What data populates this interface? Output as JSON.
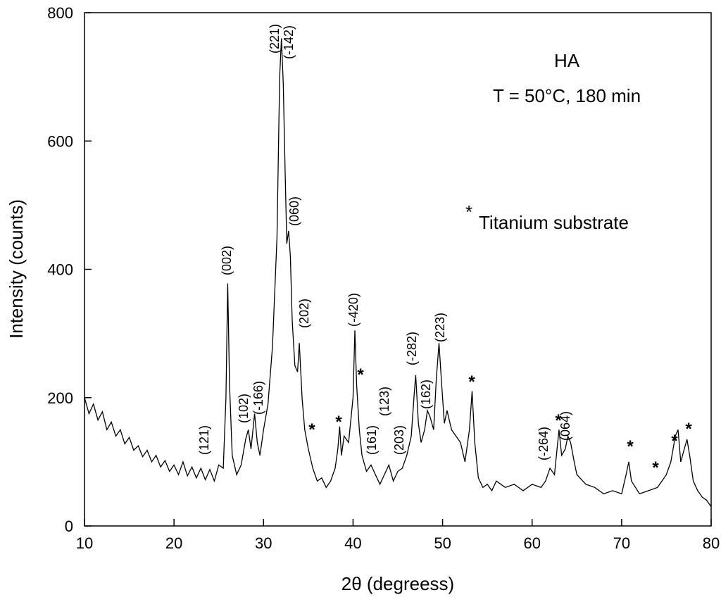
{
  "chart_data": {
    "type": "line",
    "xlabel": "2θ (degreess)",
    "ylabel": "Intensity (counts)",
    "xlim": [
      10,
      80
    ],
    "xticks": [
      10,
      20,
      30,
      40,
      50,
      60,
      70,
      80
    ],
    "ylim": [
      0,
      800
    ],
    "yticks": [
      0,
      200,
      400,
      600,
      800
    ],
    "color": "#000000",
    "texts": [
      "HA",
      "T = 50°C, 180 min"
    ],
    "legend_symbol": "*",
    "legend_text": "Titanium substrate",
    "peak_labels": [
      "(121)",
      "(002)",
      "(102)",
      "(-166)",
      "(221)",
      "(-142)",
      "(060)",
      "(202)",
      "(-420)",
      "(161)",
      "(123)",
      "(203)",
      "(-282)",
      "(162)",
      "(223)",
      "(-264)",
      "(064)"
    ],
    "substrate_marks": [
      "*",
      "*",
      "*",
      "*",
      "*",
      "*",
      "*",
      "*",
      "*"
    ],
    "x": [
      10,
      10.5,
      11,
      11.5,
      12,
      12.5,
      13,
      13.5,
      14,
      14.5,
      15,
      15.5,
      16,
      16.5,
      17,
      17.5,
      18,
      18.5,
      19,
      19.5,
      20,
      20.5,
      21,
      21.5,
      22,
      22.5,
      23,
      23.5,
      24,
      24.5,
      25,
      25.5,
      25.8,
      26,
      26.2,
      26.5,
      27,
      27.5,
      28,
      28.3,
      28.6,
      29,
      29.3,
      29.6,
      30,
      30.5,
      31,
      31.5,
      31.8,
      32,
      32.2,
      32.4,
      32.6,
      32.8,
      33,
      33.2,
      33.5,
      33.8,
      34,
      34.3,
      34.6,
      35,
      35.5,
      36,
      36.5,
      37,
      37.5,
      38,
      38.3,
      38.5,
      38.7,
      39,
      39.5,
      40,
      40.2,
      40.4,
      40.7,
      41,
      41.5,
      42,
      42.5,
      43,
      43.5,
      44,
      44.5,
      45,
      45.5,
      46,
      46.5,
      46.8,
      47,
      47.3,
      47.6,
      48,
      48.3,
      48.6,
      49,
      49.3,
      49.6,
      49.9,
      50.2,
      50.5,
      51,
      51.5,
      52,
      52.5,
      53,
      53.3,
      53.6,
      54,
      54.5,
      55,
      55.5,
      56,
      57,
      58,
      59,
      60,
      61,
      61.5,
      62,
      62.5,
      63,
      63.3,
      63.7,
      64,
      64.3,
      64.7,
      65,
      66,
      67,
      68,
      69,
      70,
      70.5,
      70.8,
      71.1,
      72,
      73,
      74,
      74.5,
      75,
      75.5,
      76,
      76.3,
      76.6,
      77,
      77.3,
      77.6,
      78,
      78.5,
      79,
      79.5,
      80
    ],
    "y": [
      200,
      175,
      190,
      165,
      178,
      150,
      162,
      140,
      150,
      128,
      138,
      118,
      125,
      108,
      118,
      100,
      110,
      92,
      102,
      85,
      95,
      80,
      100,
      78,
      92,
      75,
      90,
      72,
      88,
      70,
      95,
      90,
      200,
      378,
      220,
      110,
      80,
      95,
      135,
      150,
      120,
      175,
      130,
      110,
      150,
      190,
      280,
      450,
      700,
      760,
      690,
      560,
      440,
      460,
      420,
      320,
      250,
      240,
      285,
      200,
      150,
      120,
      90,
      70,
      75,
      60,
      70,
      90,
      120,
      155,
      110,
      140,
      130,
      200,
      305,
      220,
      150,
      110,
      85,
      95,
      80,
      65,
      80,
      95,
      70,
      85,
      90,
      110,
      140,
      200,
      235,
      160,
      130,
      150,
      180,
      170,
      150,
      230,
      285,
      220,
      160,
      180,
      150,
      140,
      130,
      100,
      150,
      210,
      130,
      75,
      60,
      65,
      55,
      70,
      60,
      65,
      55,
      65,
      60,
      70,
      90,
      80,
      150,
      110,
      120,
      140,
      130,
      100,
      80,
      65,
      60,
      50,
      55,
      50,
      80,
      100,
      70,
      50,
      55,
      60,
      70,
      80,
      100,
      140,
      150,
      100,
      120,
      135,
      110,
      70,
      55,
      45,
      40,
      30
    ]
  }
}
